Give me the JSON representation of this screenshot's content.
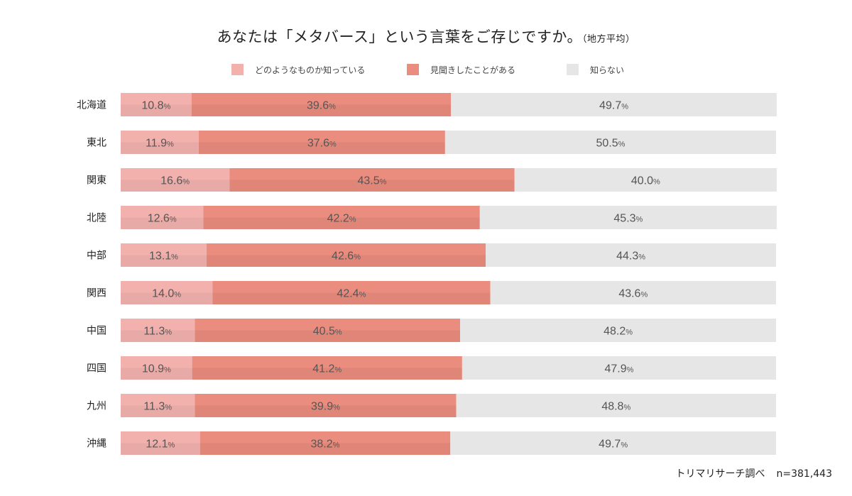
{
  "chart_data": {
    "type": "bar",
    "orientation": "horizontal",
    "stacked": true,
    "title": "あなたは「メタバース」という言葉をご存じですか。",
    "subtitle": "（地方平均）",
    "categories": [
      "北海道",
      "東北",
      "関東",
      "北陸",
      "中部",
      "関西",
      "中国",
      "四国",
      "九州",
      "沖縄"
    ],
    "series": [
      {
        "name": "どのようなものか知っている",
        "color": "#f2b1ad",
        "values": [
          10.8,
          11.9,
          16.6,
          12.6,
          13.1,
          14.0,
          11.3,
          10.9,
          11.3,
          12.1
        ]
      },
      {
        "name": "見聞きしたことがある",
        "color": "#ea8c7e",
        "values": [
          39.6,
          37.6,
          43.5,
          42.2,
          42.6,
          42.4,
          40.5,
          41.2,
          39.9,
          38.2
        ]
      },
      {
        "name": "知らない",
        "color": "#e6e6e6",
        "values": [
          49.7,
          50.5,
          40.0,
          45.3,
          44.3,
          43.6,
          48.2,
          47.9,
          48.8,
          49.7
        ]
      }
    ],
    "value_suffix": "%",
    "xlim": [
      0,
      100
    ],
    "legend": "top",
    "grid": false,
    "source": "トリマリサーチ調べ",
    "sample": "n=381,443"
  },
  "colors": {
    "known": "#f2b1ad",
    "heard": "#ea8c7e",
    "unknown": "#e6e6e6",
    "label": "#555555"
  }
}
